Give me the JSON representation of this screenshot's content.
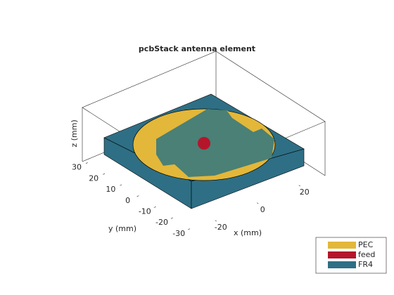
{
  "chart_data": {
    "type": "pcb3d",
    "title": "pcbStack antenna element",
    "x_label": "x (mm)",
    "y_label": "y (mm)",
    "z_label": "z (mm)",
    "xlim": [
      -32,
      32
    ],
    "ylim": [
      -32,
      32
    ],
    "xticks": [
      -20,
      0,
      20
    ],
    "yticks": [
      30,
      20,
      10,
      0,
      -10,
      -20,
      -30
    ],
    "legend": [
      {
        "name": "PEC",
        "color": "#e3b739"
      },
      {
        "name": "feed",
        "color": "#b5152b"
      },
      {
        "name": "FR4",
        "color": "#2e6f85"
      }
    ],
    "legend_position": "lower-right"
  }
}
